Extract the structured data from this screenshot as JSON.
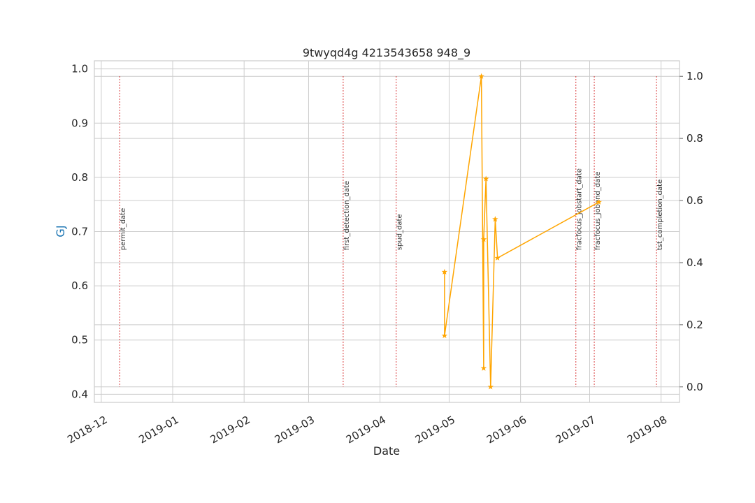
{
  "chart_data": {
    "type": "line",
    "title": "9twyqd4g 4213543658 948_9",
    "xlabel": "Date",
    "ylabel": "GJ",
    "ylabel_color": "#1f77b4",
    "series_color": "#ffa500",
    "event_line_color": "#d62728",
    "grid": true,
    "x_range": [
      "2018-11-28",
      "2019-08-09"
    ],
    "y_left_range": [
      0.385,
      1.015
    ],
    "y_right_range": [
      -0.05,
      1.05
    ],
    "x_ticks": [
      "2018-12",
      "2019-01",
      "2019-02",
      "2019-03",
      "2019-04",
      "2019-05",
      "2019-06",
      "2019-07",
      "2019-08"
    ],
    "y_left_ticks": [
      "0.4",
      "0.5",
      "0.6",
      "0.7",
      "0.8",
      "0.9",
      "1.0"
    ],
    "y_right_ticks": [
      "0.0",
      "0.2",
      "0.4",
      "0.6",
      "0.8",
      "1.0"
    ],
    "series": [
      {
        "marker": "star",
        "x": [
          "2019-04-29",
          "2019-04-29",
          "2019-05-15",
          "2019-05-16",
          "2019-05-16",
          "2019-05-17",
          "2019-05-19",
          "2019-05-21",
          "2019-05-22",
          "2019-07-05"
        ],
        "y": [
          0.37,
          0.165,
          1.0,
          0.06,
          0.475,
          0.67,
          0.0,
          0.54,
          0.415,
          0.595
        ]
      }
    ],
    "events": [
      {
        "label": "permit_date",
        "date": "2018-12-09"
      },
      {
        "label": "first_detection_date",
        "date": "2019-03-16"
      },
      {
        "label": "spud_date",
        "date": "2019-04-08"
      },
      {
        "label": "fracfocus_jobstart_date",
        "date": "2019-06-25"
      },
      {
        "label": "fracfocus_jobend_date",
        "date": "2019-07-03"
      },
      {
        "label": "tst_completion_date",
        "date": "2019-07-30"
      }
    ]
  }
}
